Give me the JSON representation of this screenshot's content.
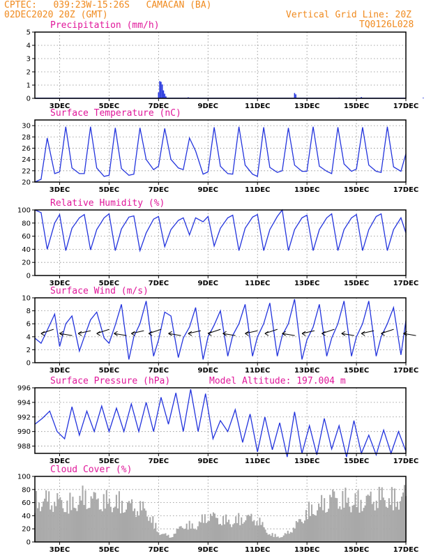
{
  "header": {
    "line1_left": "CPTEC:   039:23W-15:26S   CAMACAN (BA)",
    "line2_left": "02DEC2020 20Z (GMT)",
    "line2_right": "Vertical Grid Line: 20Z",
    "line3_right": "TQ0126L028"
  },
  "colors": {
    "header": "#f08a1e",
    "title": "#e0179a",
    "line": "#2233dd",
    "bar": "#2233dd",
    "cloud": "#a8a8a8"
  },
  "chart_data": [
    {
      "type": "bar",
      "title": "Precipitation (mm/h)",
      "x": [
        4.9,
        5.0,
        5.05,
        5.1,
        5.15,
        5.2,
        5.25,
        5.3,
        5.4,
        6.2,
        6.4,
        10.5,
        10.55,
        12.3,
        13.2,
        15.7
      ],
      "values": [
        0.05,
        0.45,
        1.3,
        1.25,
        1.05,
        0.6,
        0.35,
        0.15,
        0.05,
        0.08,
        0.04,
        0.4,
        0.3,
        0.06,
        0.1,
        0.05
      ],
      "ylim": [
        0,
        5
      ],
      "yticks": [
        0,
        1,
        2,
        3,
        4,
        5
      ]
    },
    {
      "type": "line",
      "title": "Surface Temperature (nC)",
      "x": [
        0,
        0.25,
        0.5,
        0.8,
        1.0,
        1.25,
        1.5,
        1.8,
        2.0,
        2.25,
        2.5,
        2.8,
        3.0,
        3.25,
        3.5,
        3.8,
        4.0,
        4.25,
        4.5,
        4.8,
        5.0,
        5.25,
        5.5,
        5.8,
        6.0,
        6.25,
        6.5,
        6.8,
        7.0,
        7.25,
        7.5,
        7.8,
        8.0,
        8.25,
        8.5,
        8.8,
        9.0,
        9.25,
        9.5,
        9.8,
        10.0,
        10.25,
        10.5,
        10.8,
        11.0,
        11.25,
        11.5,
        11.8,
        12.0,
        12.25,
        12.5,
        12.8,
        13.0,
        13.25,
        13.5,
        13.8,
        14.0,
        14.25,
        14.5,
        14.8,
        15.0
      ],
      "values": [
        20,
        20.5,
        27.8,
        21.5,
        21.8,
        29.8,
        22.5,
        21.5,
        21.5,
        29.8,
        22.5,
        21.0,
        21.2,
        29.6,
        22.4,
        21.2,
        21.4,
        29.6,
        24.0,
        22.2,
        22.8,
        29.5,
        24.0,
        22.5,
        22.2,
        27.8,
        25.5,
        21.4,
        21.8,
        29.7,
        22.8,
        21.5,
        21.4,
        29.8,
        23.0,
        21.4,
        21.0,
        29.7,
        22.6,
        21.7,
        22.0,
        29.6,
        23.0,
        21.9,
        21.9,
        29.8,
        22.8,
        21.9,
        21.5,
        29.7,
        23.2,
        21.9,
        22.3,
        29.7,
        23.0,
        21.9,
        21.7,
        29.8,
        22.7,
        21.9,
        25.0
      ],
      "ylim": [
        20,
        31
      ],
      "yticks": [
        20,
        22,
        24,
        26,
        28,
        30
      ]
    },
    {
      "type": "line",
      "title": "Relative Humidity (%)",
      "x": [
        0,
        0.25,
        0.5,
        0.8,
        1.0,
        1.25,
        1.5,
        1.8,
        2.0,
        2.25,
        2.5,
        2.8,
        3.0,
        3.25,
        3.5,
        3.8,
        4.0,
        4.25,
        4.5,
        4.8,
        5.0,
        5.25,
        5.5,
        5.8,
        6.0,
        6.25,
        6.5,
        6.8,
        7.0,
        7.25,
        7.5,
        7.8,
        8.0,
        8.25,
        8.5,
        8.8,
        9.0,
        9.25,
        9.5,
        9.8,
        10.0,
        10.25,
        10.5,
        10.8,
        11.0,
        11.25,
        11.5,
        11.8,
        12.0,
        12.25,
        12.5,
        12.8,
        13.0,
        13.25,
        13.5,
        13.8,
        14.0,
        14.25,
        14.5,
        14.8,
        15.0
      ],
      "values": [
        100,
        96,
        40,
        80,
        93,
        38,
        72,
        88,
        93,
        39,
        70,
        88,
        94,
        38,
        71,
        89,
        91,
        38,
        65,
        86,
        90,
        44,
        70,
        84,
        88,
        62,
        88,
        82,
        90,
        45,
        72,
        88,
        92,
        38,
        72,
        89,
        93,
        38,
        70,
        90,
        100,
        38,
        70,
        88,
        92,
        38,
        70,
        88,
        94,
        38,
        70,
        88,
        93,
        38,
        70,
        90,
        94,
        38,
        70,
        88,
        65
      ],
      "ylim": [
        0,
        100
      ],
      "yticks": [
        0,
        20,
        40,
        60,
        80,
        100
      ]
    },
    {
      "type": "line",
      "title": "Surface Wind (m/s)",
      "x": [
        0,
        0.25,
        0.5,
        0.8,
        1.0,
        1.25,
        1.5,
        1.8,
        2.0,
        2.25,
        2.5,
        2.8,
        3.0,
        3.25,
        3.5,
        3.8,
        4.0,
        4.25,
        4.5,
        4.8,
        5.0,
        5.25,
        5.5,
        5.8,
        6.0,
        6.25,
        6.5,
        6.8,
        7.0,
        7.25,
        7.5,
        7.8,
        8.0,
        8.25,
        8.5,
        8.8,
        9.0,
        9.25,
        9.5,
        9.8,
        10.0,
        10.25,
        10.5,
        10.8,
        11.0,
        11.25,
        11.5,
        11.8,
        12.0,
        12.25,
        12.5,
        12.8,
        13.0,
        13.25,
        13.5,
        13.8,
        14.0,
        14.25,
        14.5,
        14.8,
        15.0
      ],
      "values": [
        3.8,
        3.0,
        5.0,
        7.5,
        2.5,
        6.0,
        7.2,
        1.8,
        4.0,
        6.6,
        7.8,
        3.8,
        3.0,
        5.8,
        9.0,
        0.5,
        4.0,
        6.0,
        9.5,
        1.0,
        3.5,
        7.8,
        7.2,
        0.8,
        3.8,
        5.5,
        8.5,
        0.5,
        4.0,
        5.8,
        8.0,
        1.0,
        4.2,
        6.0,
        9.0,
        1.0,
        4.0,
        6.0,
        9.2,
        1.0,
        4.2,
        6.0,
        9.8,
        0.5,
        3.5,
        5.5,
        9.0,
        1.0,
        3.8,
        6.0,
        9.5,
        1.0,
        4.0,
        6.0,
        9.5,
        1.0,
        4.0,
        6.0,
        8.5,
        1.2,
        6.5
      ],
      "ylim": [
        0,
        10
      ],
      "yticks": [
        0,
        2,
        4,
        6,
        8,
        10
      ],
      "arrows_x": [
        0.25,
        1.0,
        1.75,
        2.5,
        3.2,
        3.9,
        4.6,
        5.4,
        6.2,
        7.0,
        7.6,
        8.5,
        9.3,
        10.0,
        10.8,
        11.6,
        12.4,
        13.2,
        14.0,
        14.9
      ]
    },
    {
      "type": "line",
      "title": "Surface Pressure (hPa)",
      "annotation": "Model Altitude: 197.004 m",
      "x": [
        0,
        0.3,
        0.6,
        0.9,
        1.2,
        1.5,
        1.8,
        2.1,
        2.4,
        2.7,
        3.0,
        3.3,
        3.6,
        3.9,
        4.2,
        4.5,
        4.8,
        5.1,
        5.4,
        5.7,
        6.0,
        6.3,
        6.6,
        6.9,
        7.2,
        7.5,
        7.8,
        8.1,
        8.4,
        8.7,
        9.0,
        9.3,
        9.6,
        9.9,
        10.2,
        10.5,
        10.8,
        11.1,
        11.4,
        11.7,
        12.0,
        12.3,
        12.6,
        12.9,
        13.2,
        13.5,
        13.8,
        14.1,
        14.4,
        14.7,
        15.0
      ],
      "values": [
        991,
        991.8,
        992.8,
        990,
        989,
        993.4,
        989.5,
        992.8,
        990,
        993.5,
        990,
        993.2,
        990,
        993.8,
        990,
        994.0,
        990,
        994.7,
        991,
        995.3,
        990,
        995.8,
        990,
        995.2,
        989,
        991.5,
        990,
        993.0,
        988.5,
        992.4,
        987.2,
        992.0,
        987.5,
        991.2,
        986.5,
        992.7,
        987.0,
        990.8,
        986.8,
        991.8,
        987.6,
        990.8,
        986.5,
        991.5,
        987.0,
        989.5,
        986.8,
        990.2,
        987.0,
        990.0,
        987.3
      ],
      "ylim": [
        987,
        996
      ],
      "yticks": [
        988,
        990,
        992,
        994,
        996
      ]
    },
    {
      "type": "bar",
      "title": "Cloud Cover (%)",
      "profile_x": [
        0,
        0.5,
        1.0,
        1.5,
        2.0,
        2.5,
        3.0,
        3.5,
        4.0,
        4.5,
        5.0,
        5.5,
        6.0,
        6.5,
        7.0,
        7.5,
        8.0,
        8.5,
        9.0,
        9.5,
        10.0,
        10.5,
        11.0,
        11.5,
        12.0,
        12.5,
        13.0,
        13.5,
        14.0,
        14.5,
        15.0
      ],
      "profile_values": [
        80,
        85,
        80,
        75,
        90,
        85,
        80,
        78,
        70,
        65,
        20,
        10,
        35,
        30,
        55,
        45,
        40,
        50,
        45,
        15,
        10,
        30,
        60,
        70,
        90,
        85,
        80,
        85,
        90,
        85,
        95
      ],
      "ylim": [
        0,
        100
      ],
      "yticks": [
        0,
        20,
        40,
        60,
        80,
        100
      ]
    }
  ],
  "x_axis": {
    "labels": [
      "3DEC",
      "5DEC",
      "7DEC",
      "9DEC",
      "11DEC",
      "13DEC",
      "15DEC",
      "17DEC"
    ],
    "label_positions": [
      1,
      3,
      5,
      7,
      9,
      11,
      13,
      15
    ]
  }
}
